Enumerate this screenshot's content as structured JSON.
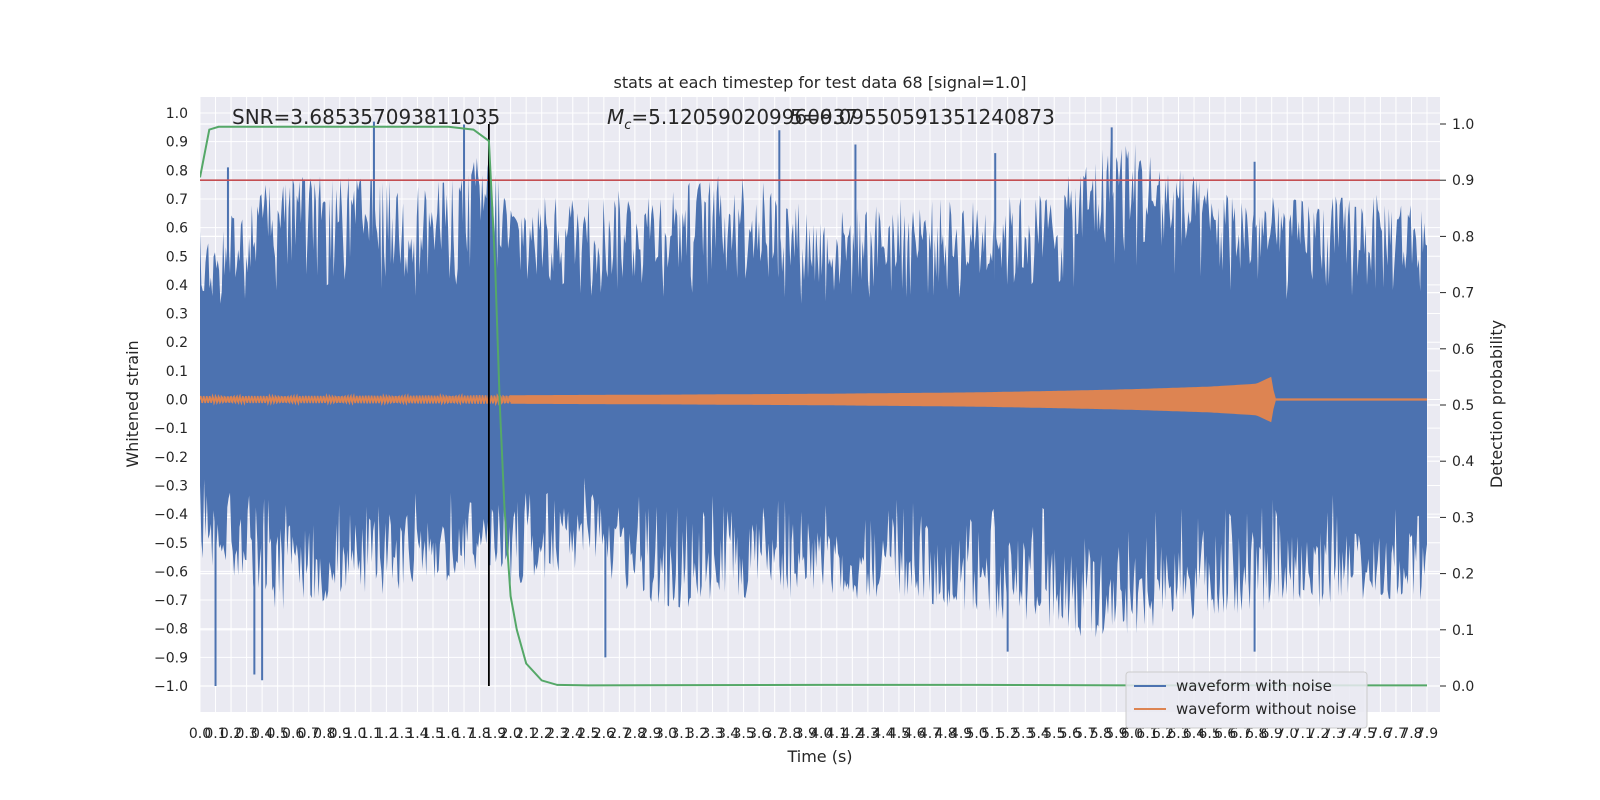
{
  "chart_data": {
    "type": "line",
    "title": "stats at each timestep for test data 68 [signal=1.0]",
    "xlabel": "Time (s)",
    "ylabel": "Whitened strain",
    "ylabel_right": "Detection probability",
    "xlim": [
      0.0,
      7.9
    ],
    "ylim": [
      -1.0,
      1.0
    ],
    "ylim_right": [
      0.0,
      1.0
    ],
    "grid": true,
    "legend_position": "lower-right",
    "x_ticks": [
      "0.0",
      "0.1",
      "0.2",
      "0.3",
      "0.4",
      "0.5",
      "0.6",
      "0.7",
      "0.8",
      "0.9",
      "1.0",
      "1.1",
      "1.2",
      "1.3",
      "1.4",
      "1.5",
      "1.6",
      "1.7",
      "1.8",
      "1.9",
      "2.0",
      "2.1",
      "2.2",
      "2.3",
      "2.4",
      "2.5",
      "2.6",
      "2.7",
      "2.8",
      "2.9",
      "3.0",
      "3.1",
      "3.2",
      "3.3",
      "3.4",
      "3.5",
      "3.6",
      "3.7",
      "3.8",
      "3.9",
      "4.0",
      "4.1",
      "4.2",
      "4.3",
      "4.4",
      "4.5",
      "4.6",
      "4.7",
      "4.8",
      "4.9",
      "5.0",
      "5.1",
      "5.2",
      "5.3",
      "5.4",
      "5.5",
      "5.6",
      "5.7",
      "5.8",
      "5.9",
      "6.0",
      "6.1",
      "6.2",
      "6.3",
      "6.4",
      "6.5",
      "6.6",
      "6.7",
      "6.8",
      "6.9",
      "7.0",
      "7.1",
      "7.2",
      "7.3",
      "7.4",
      "7.5",
      "7.6",
      "7.7",
      "7.8",
      "7.9"
    ],
    "y_ticks_left": [
      "1.0",
      "0.9",
      "0.8",
      "0.7",
      "0.6",
      "0.5",
      "0.4",
      "0.3",
      "0.2",
      "0.1",
      "0.0",
      "−0.1",
      "−0.2",
      "−0.3",
      "−0.4",
      "−0.5",
      "−0.6",
      "−0.7",
      "−0.8",
      "−0.9",
      "−1.0"
    ],
    "y_ticks_right": [
      "1.0",
      "0.9",
      "0.8",
      "0.7",
      "0.6",
      "0.5",
      "0.4",
      "0.3",
      "0.2",
      "0.1",
      "0.0"
    ],
    "annotations": {
      "snr": "SNR=3.685357093811035",
      "mc_prefix": "M",
      "mc_sub": "c",
      "mc_value": "=5.120590209960937",
      "overlap": "5=6.09550591351240873"
    },
    "colors": {
      "noise": "#4c72b0",
      "clean": "#dd8452",
      "probability": "#55a868",
      "threshold": "#c44e52",
      "marker": "#000000",
      "axes_bg": "#eaeaf2",
      "grid": "#ffffff"
    },
    "series": [
      {
        "name": "waveform with noise",
        "axis": "left",
        "envelope": {
          "x": [
            0.0,
            0.5,
            1.0,
            1.5,
            1.86,
            2.0,
            2.5,
            3.0,
            3.5,
            4.0,
            4.5,
            5.0,
            5.5,
            5.9,
            6.5,
            7.0,
            7.5,
            7.9
          ],
          "upper": [
            0.6,
            0.78,
            0.78,
            0.75,
            0.88,
            0.7,
            0.72,
            0.75,
            0.8,
            0.65,
            0.7,
            0.7,
            0.73,
            0.95,
            0.75,
            0.7,
            0.72,
            0.7
          ],
          "lower": [
            -0.55,
            -0.75,
            -0.7,
            -0.65,
            -0.6,
            -0.65,
            -0.6,
            -0.75,
            -0.7,
            -0.7,
            -0.7,
            -0.75,
            -0.82,
            -0.85,
            -0.75,
            -0.75,
            -0.7,
            -0.7
          ]
        },
        "spikes": [
          {
            "x": 0.1,
            "y": -1.0
          },
          {
            "x": 0.18,
            "y": 0.81
          },
          {
            "x": 0.35,
            "y": -0.96
          },
          {
            "x": 0.4,
            "y": -0.98
          },
          {
            "x": 1.12,
            "y": 0.97
          },
          {
            "x": 1.7,
            "y": 0.96
          },
          {
            "x": 3.73,
            "y": 0.94
          },
          {
            "x": 4.22,
            "y": 0.89
          },
          {
            "x": 5.12,
            "y": 0.86
          },
          {
            "x": 5.87,
            "y": 0.95
          },
          {
            "x": 6.79,
            "y": 0.83
          },
          {
            "x": 6.79,
            "y": -0.88
          },
          {
            "x": 2.61,
            "y": -0.9
          },
          {
            "x": 5.2,
            "y": -0.88
          }
        ]
      },
      {
        "name": "waveform without noise",
        "axis": "left",
        "amplitude": {
          "x": [
            0.0,
            1.0,
            2.0,
            3.0,
            4.0,
            5.0,
            5.5,
            6.0,
            6.5,
            6.8,
            6.9,
            6.92,
            7.9
          ],
          "y": [
            0.012,
            0.013,
            0.015,
            0.017,
            0.02,
            0.025,
            0.03,
            0.036,
            0.045,
            0.055,
            0.08,
            0.0,
            0.0
          ]
        }
      },
      {
        "name": "detection probability",
        "axis": "right",
        "x": [
          0.0,
          0.06,
          0.12,
          0.3,
          1.0,
          1.6,
          1.76,
          1.86,
          1.9,
          1.93,
          1.96,
          2.0,
          2.04,
          2.1,
          2.2,
          2.3,
          2.5,
          4.0,
          5.0,
          6.0,
          7.9
        ],
        "y": [
          0.905,
          0.99,
          0.995,
          0.995,
          0.995,
          0.995,
          0.99,
          0.97,
          0.75,
          0.5,
          0.32,
          0.16,
          0.1,
          0.04,
          0.01,
          0.002,
          0.001,
          0.002,
          0.002,
          0.001,
          0.001
        ]
      }
    ],
    "reference_lines": {
      "threshold_right": 0.9,
      "marker_x": 1.86
    },
    "legend": [
      "waveform with noise",
      "waveform without noise"
    ]
  }
}
